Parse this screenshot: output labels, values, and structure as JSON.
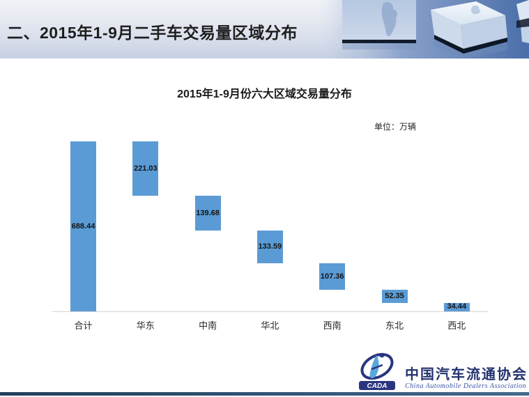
{
  "header": {
    "title": "二、2015年1-9月二手车交易量区域分布"
  },
  "chart": {
    "title": "2015年1-9月份六大区域交易量分布",
    "unit_label": "单位：万辆"
  },
  "chart_data": {
    "type": "bar",
    "subtype": "waterfall",
    "title": "2015年1-9月份六大区域交易量分布",
    "unit": "万辆",
    "categories": [
      "合计",
      "华东",
      "中南",
      "华北",
      "西南",
      "东北",
      "西北"
    ],
    "values": [
      688.44,
      221.03,
      139.68,
      133.59,
      107.36,
      52.35,
      34.44
    ],
    "value_labels": [
      "688.44",
      "221.03",
      "139.68",
      "133.59",
      "107.36",
      "52.35",
      "34.44"
    ],
    "total_category": "合计",
    "bar_color": "#5B9BD5",
    "label_color": "#141414",
    "ylim": [
      0,
      688.44
    ],
    "gridlines": false,
    "legend": false,
    "note": "first bar is the total; regional bars cascade down from the total (waterfall)"
  },
  "footer": {
    "logo_acronym": "CADA",
    "org_name_cn": "中国汽车流通协会",
    "org_name_en": "China Automobile Dealers Association",
    "accent_navy": "#2a3580"
  }
}
